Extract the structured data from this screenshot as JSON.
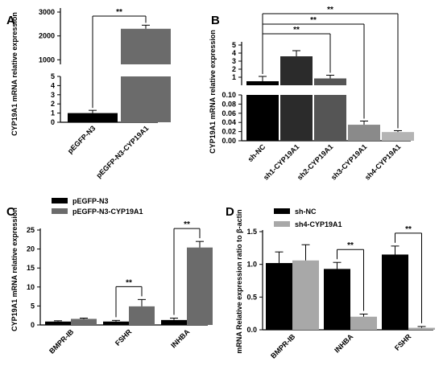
{
  "chart_data": [
    {
      "panel": "A",
      "type": "bar",
      "ylabel": "CYP19A1 mRNA relative expression",
      "categories": [
        "pEGFP-N3",
        "pEGFP-N3-CYP19A1"
      ],
      "values": [
        1,
        2300
      ],
      "errors": [
        0.3,
        150
      ],
      "colors": [
        "#000000",
        "#6b6b6b"
      ],
      "broken_axis": true,
      "y_ticks_top": [
        "1000",
        "2000",
        "3000"
      ],
      "y_ticks_bottom": [
        "0",
        "1",
        "2",
        "3",
        "4",
        "5"
      ],
      "significance": [
        {
          "pair": [
            0,
            1
          ],
          "label": "**"
        }
      ]
    },
    {
      "panel": "B",
      "type": "bar",
      "ylabel": "CYP19A1 mRNA relative expression",
      "categories": [
        "sh-NC",
        "sh1-CYP19A1",
        "sh2-CYP19A1",
        "sh3-CYP19A1",
        "sh4-CYP19A1"
      ],
      "values": [
        0.5,
        3.6,
        0.85,
        0.035,
        0.019
      ],
      "errors": [
        0.6,
        0.7,
        0.4,
        0.008,
        0.003
      ],
      "colors": [
        "#000000",
        "#2b2b2b",
        "#555555",
        "#8a8a8a",
        "#b4b4b4"
      ],
      "broken_axis": true,
      "y_ticks_top": [
        "1",
        "2",
        "3",
        "4",
        "5"
      ],
      "y_ticks_bottom": [
        "0.00",
        "0.02",
        "0.04",
        "0.06",
        "0.08",
        "0.10"
      ],
      "significance": [
        {
          "pair": [
            0,
            2
          ],
          "label": "**"
        },
        {
          "pair": [
            0,
            3
          ],
          "label": "**"
        },
        {
          "pair": [
            0,
            4
          ],
          "label": "**"
        }
      ]
    },
    {
      "panel": "C",
      "type": "bar",
      "ylabel": "CYP19A1 mRNA relative expression",
      "categories": [
        "BMPR-IB",
        "FSHR",
        "INHBA"
      ],
      "series": [
        {
          "name": "pEGFP-N3",
          "values": [
            0.9,
            0.9,
            1.3
          ],
          "errors": [
            0.2,
            0.3,
            0.5
          ],
          "color": "#000000"
        },
        {
          "name": "pEGFP-N3-CYP19A1",
          "values": [
            1.6,
            4.9,
            20.4
          ],
          "errors": [
            0.2,
            1.8,
            1.6
          ],
          "color": "#6b6b6b"
        }
      ],
      "ylim": [
        0,
        25
      ],
      "y_ticks": [
        "0",
        "5",
        "10",
        "15",
        "20",
        "25"
      ],
      "significance": [
        {
          "category": 1,
          "label": "**"
        },
        {
          "category": 2,
          "label": "**"
        }
      ]
    },
    {
      "panel": "D",
      "type": "bar",
      "ylabel": "mRNA Relative expression ratio to β-actin",
      "categories": [
        "BMPR-IB",
        "INHBA",
        "FSHR"
      ],
      "series": [
        {
          "name": "sh-NC",
          "values": [
            1.02,
            0.93,
            1.15
          ],
          "errors": [
            0.17,
            0.1,
            0.13
          ],
          "color": "#000000"
        },
        {
          "name": "sh4-CYP19A1",
          "values": [
            1.06,
            0.2,
            0.03
          ],
          "errors": [
            0.24,
            0.04,
            0.02
          ],
          "color": "#a8a8a8"
        }
      ],
      "ylim": [
        0,
        1.5
      ],
      "y_ticks": [
        "0.0",
        "0.5",
        "1.0",
        "1.5"
      ],
      "significance": [
        {
          "category": 1,
          "label": "**"
        },
        {
          "category": 2,
          "label": "**"
        }
      ]
    }
  ]
}
